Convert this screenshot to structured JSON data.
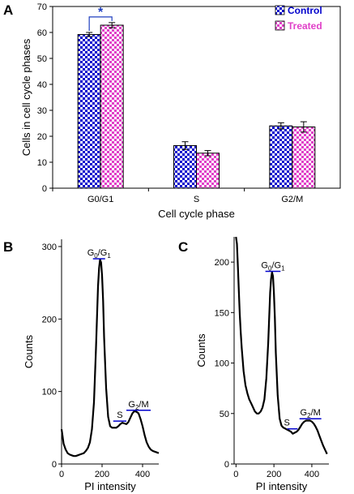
{
  "colors": {
    "control": "#0000cc",
    "treated": "#e040c8",
    "phase_line": "#0000cc",
    "significance": "#1f3fbf"
  },
  "chart_data": [
    {
      "panel": "A",
      "type": "bar",
      "xlabel": "Cell cycle phase",
      "ylabel": "Cells in cell cycle phases",
      "ylim": [
        0,
        70
      ],
      "yticks": [
        0,
        10,
        20,
        30,
        40,
        50,
        60,
        70
      ],
      "categories": [
        "G0/G1",
        "S",
        "G2/M"
      ],
      "legend_position": "top-right",
      "series": [
        {
          "name": "Control",
          "values": [
            59.2,
            16.4,
            24.0
          ],
          "errors": [
            0.8,
            1.5,
            1.2
          ]
        },
        {
          "name": "Treated",
          "values": [
            62.8,
            13.5,
            23.6
          ],
          "errors": [
            1.0,
            1.0,
            2.0
          ]
        }
      ],
      "annotations": [
        {
          "text": "*",
          "between": [
            "Control",
            "Treated"
          ],
          "category": "G0/G1"
        }
      ]
    },
    {
      "panel": "B",
      "type": "line",
      "xlabel": "PI intensity",
      "ylabel": "Counts",
      "xlim": [
        0,
        480
      ],
      "ylim": [
        0,
        310
      ],
      "xticks": [
        0,
        200,
        400
      ],
      "yticks": [
        0,
        100,
        200,
        300
      ],
      "x": [
        0,
        5,
        10,
        20,
        30,
        40,
        50,
        60,
        70,
        80,
        90,
        100,
        110,
        120,
        130,
        140,
        150,
        160,
        170,
        180,
        185,
        190,
        195,
        200,
        205,
        210,
        220,
        230,
        240,
        250,
        260,
        270,
        280,
        290,
        300,
        310,
        320,
        330,
        340,
        350,
        360,
        370,
        380,
        390,
        400,
        410,
        420,
        430,
        440,
        450,
        460,
        470,
        480
      ],
      "y": [
        48,
        38,
        28,
        20,
        15,
        13,
        12,
        11,
        11,
        12,
        13,
        14,
        15,
        18,
        22,
        30,
        48,
        85,
        160,
        245,
        270,
        282,
        278,
        260,
        225,
        175,
        105,
        65,
        52,
        50,
        50,
        50,
        52,
        55,
        57,
        56,
        55,
        58,
        64,
        70,
        73,
        72,
        70,
        62,
        52,
        40,
        30,
        24,
        20,
        18,
        17,
        16,
        15
      ],
      "phase_labels": [
        {
          "text": "G0/G1",
          "main": "G",
          "sub1": "0",
          "mid": "/G",
          "sub2": "1",
          "x_range": [
            155,
            215
          ],
          "y": 282
        },
        {
          "text": "S",
          "main": "S",
          "x_range": [
            255,
            320
          ],
          "y": 58
        },
        {
          "text": "G2/M",
          "main": "G",
          "sub1": "2",
          "mid": "/M",
          "x_range": [
            320,
            440
          ],
          "y": 73
        }
      ]
    },
    {
      "panel": "C",
      "type": "line",
      "xlabel": "PI intensity",
      "ylabel": "Counts",
      "xlim": [
        -10,
        490
      ],
      "ylim": [
        0,
        225
      ],
      "xticks": [
        0,
        200,
        400
      ],
      "yticks": [
        0,
        50,
        100,
        150,
        200
      ],
      "x": [
        0,
        5,
        10,
        15,
        20,
        25,
        30,
        40,
        50,
        60,
        70,
        80,
        90,
        100,
        110,
        120,
        130,
        140,
        150,
        160,
        170,
        180,
        185,
        190,
        195,
        200,
        205,
        210,
        220,
        230,
        240,
        250,
        260,
        270,
        280,
        290,
        300,
        310,
        320,
        330,
        340,
        350,
        360,
        370,
        380,
        390,
        400,
        410,
        420,
        430,
        440,
        450,
        460,
        470,
        480
      ],
      "y": [
        225,
        218,
        195,
        170,
        148,
        130,
        115,
        92,
        78,
        70,
        64,
        60,
        56,
        52,
        50,
        50,
        52,
        56,
        64,
        85,
        120,
        170,
        183,
        190,
        186,
        170,
        145,
        110,
        68,
        45,
        38,
        36,
        35,
        34,
        33,
        32,
        30,
        31,
        32,
        34,
        37,
        40,
        42,
        43,
        43,
        43,
        42,
        40,
        37,
        33,
        28,
        23,
        18,
        14,
        10
      ],
      "phase_labels": [
        {
          "text": "G0/G1",
          "main": "G",
          "sub1": "0",
          "mid": "/G",
          "sub2": "1",
          "x_range": [
            155,
            235
          ],
          "y": 190
        },
        {
          "text": "S",
          "main": "S",
          "x_range": [
            270,
            325
          ],
          "y": 34
        },
        {
          "text": "G2/M",
          "main": "G",
          "sub1": "2",
          "mid": "/M",
          "x_range": [
            335,
            450
          ],
          "y": 44
        }
      ]
    }
  ]
}
